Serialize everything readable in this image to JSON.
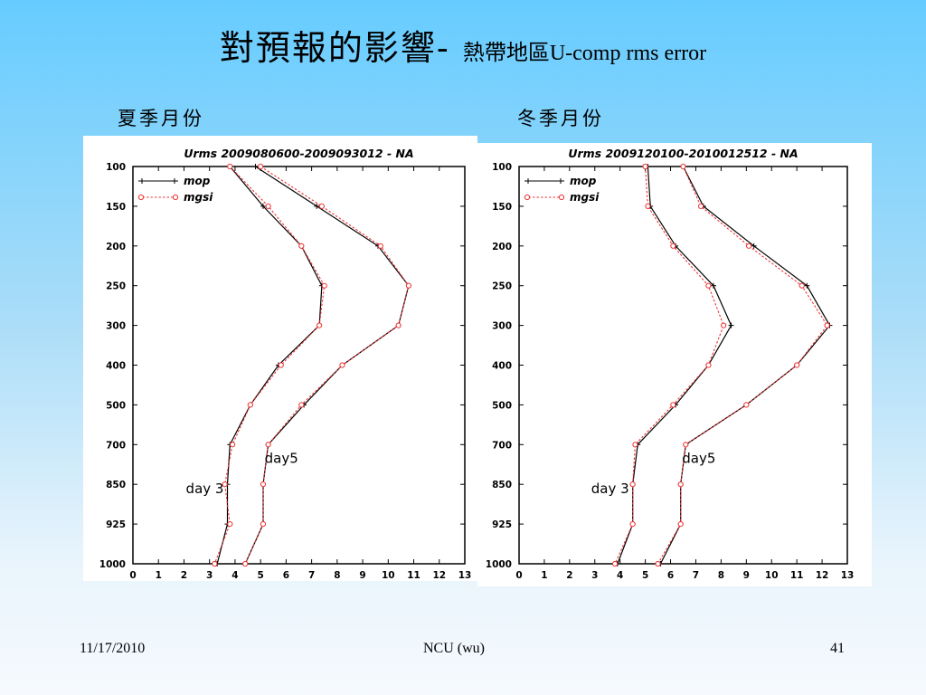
{
  "slide": {
    "title_main": "對預報的影響",
    "title_dash": "- ",
    "title_rest": "熱帶地區U-comp rms error",
    "left_label": "夏季月份",
    "right_label": "冬季月份",
    "footer_date": "11/17/2010",
    "footer_center": "NCU (wu)",
    "footer_page": "41"
  },
  "colors": {
    "mop": "#000000",
    "mgsi": "#ee3333"
  },
  "chart_data": [
    {
      "type": "line",
      "title": "Urms 2009080600-2009093012 - NA",
      "levels": [
        100,
        150,
        200,
        250,
        300,
        400,
        500,
        700,
        850,
        925,
        1000
      ],
      "xlim": [
        0,
        13
      ],
      "xticks": [
        "0",
        "1",
        "2",
        "3",
        "4",
        "5",
        "6",
        "7",
        "8",
        "9",
        "10",
        "11",
        "12",
        "13"
      ],
      "legend": [
        "mop",
        "mgsi"
      ],
      "legend_position": "top-left",
      "annotations": [
        "day5",
        "day 3"
      ],
      "series": [
        {
          "name": "mop",
          "day": "day 3",
          "values": [
            3.8,
            5.1,
            6.6,
            7.4,
            7.3,
            5.7,
            4.6,
            3.8,
            3.7,
            3.7,
            3.3
          ]
        },
        {
          "name": "mgsi",
          "day": "day 3",
          "values": [
            3.8,
            5.3,
            6.6,
            7.5,
            7.3,
            5.8,
            4.6,
            3.9,
            3.6,
            3.8,
            3.2
          ]
        },
        {
          "name": "mop",
          "day": "day5",
          "values": [
            4.8,
            7.2,
            9.6,
            10.8,
            10.4,
            8.2,
            6.7,
            5.3,
            5.1,
            5.1,
            4.4
          ]
        },
        {
          "name": "mgsi",
          "day": "day5",
          "values": [
            5.0,
            7.4,
            9.7,
            10.8,
            10.4,
            8.2,
            6.6,
            5.3,
            5.1,
            5.1,
            4.4
          ]
        }
      ]
    },
    {
      "type": "line",
      "title": "Urms 2009120100-2010012512 - NA",
      "levels": [
        100,
        150,
        200,
        250,
        300,
        400,
        500,
        700,
        850,
        925,
        1000
      ],
      "xlim": [
        0,
        13
      ],
      "xticks": [
        "0",
        "1",
        "2",
        "3",
        "4",
        "5",
        "6",
        "7",
        "8",
        "9",
        "10",
        "11",
        "12",
        "13"
      ],
      "legend": [
        "mop",
        "mgsi"
      ],
      "legend_position": "top-left",
      "annotations": [
        "day5",
        "day 3"
      ],
      "series": [
        {
          "name": "mop",
          "day": "day 3",
          "values": [
            5.1,
            5.2,
            6.2,
            7.7,
            8.4,
            7.5,
            6.2,
            4.7,
            4.5,
            4.5,
            3.9
          ]
        },
        {
          "name": "mgsi",
          "day": "day 3",
          "values": [
            5.0,
            5.1,
            6.1,
            7.5,
            8.1,
            7.5,
            6.1,
            4.6,
            4.5,
            4.5,
            3.8
          ]
        },
        {
          "name": "mop",
          "day": "day5",
          "values": [
            6.5,
            7.3,
            9.3,
            11.4,
            12.3,
            11.0,
            9.0,
            6.6,
            6.4,
            6.4,
            5.6
          ]
        },
        {
          "name": "mgsi",
          "day": "day5",
          "values": [
            6.5,
            7.2,
            9.1,
            11.2,
            12.2,
            11.0,
            9.0,
            6.6,
            6.4,
            6.4,
            5.5
          ]
        }
      ]
    }
  ]
}
